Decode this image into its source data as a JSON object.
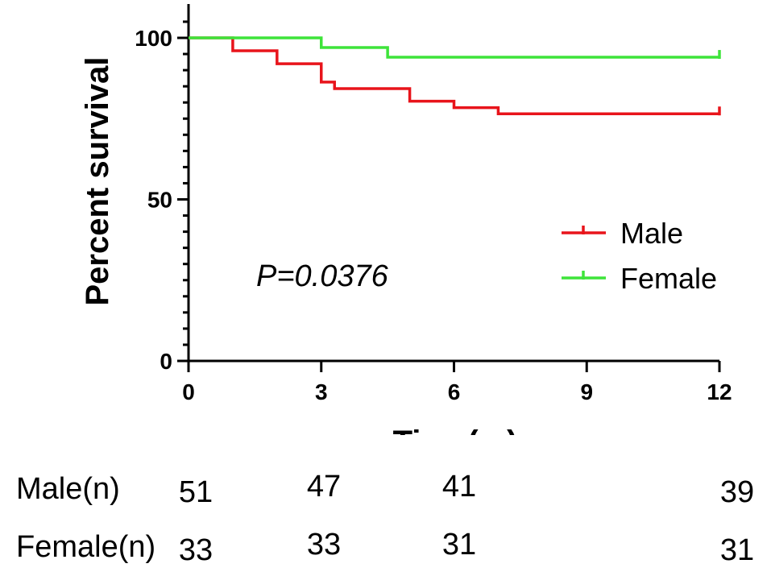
{
  "chart_data": {
    "type": "line",
    "subtype": "kaplan-meier",
    "xlabel": "Time(m)",
    "ylabel": "Percent survival",
    "xlim": [
      0,
      12
    ],
    "ylim": [
      0,
      100
    ],
    "xticks": [
      "0",
      "3",
      "6",
      "9",
      "12"
    ],
    "xtick_values": [
      0,
      3,
      6,
      9,
      12
    ],
    "yticks": [
      "0",
      "50",
      "100"
    ],
    "ytick_values": [
      0,
      50,
      100
    ],
    "annotation": "P=0.0376",
    "legend_position": "right",
    "series": [
      {
        "name": "Male",
        "color": "#e8141b",
        "steps": [
          [
            0,
            100
          ],
          [
            1,
            96
          ],
          [
            2,
            92
          ],
          [
            3,
            86.3
          ],
          [
            3.3,
            84.3
          ],
          [
            5,
            80.4
          ],
          [
            6,
            78.4
          ],
          [
            7,
            76.5
          ],
          [
            12,
            76.5
          ]
        ],
        "censor_x": [
          12
        ]
      },
      {
        "name": "Female",
        "color": "#3ee43a",
        "steps": [
          [
            0,
            100
          ],
          [
            3,
            97
          ],
          [
            4.5,
            94
          ],
          [
            12,
            94
          ]
        ],
        "censor_x": [
          12
        ]
      }
    ]
  },
  "risk_table": {
    "rows": [
      {
        "label": "Male(n)",
        "values": [
          "51",
          "47",
          "41",
          "39"
        ]
      },
      {
        "label": "Female(n)",
        "values": [
          "33",
          "33",
          "31",
          "31"
        ]
      }
    ]
  }
}
